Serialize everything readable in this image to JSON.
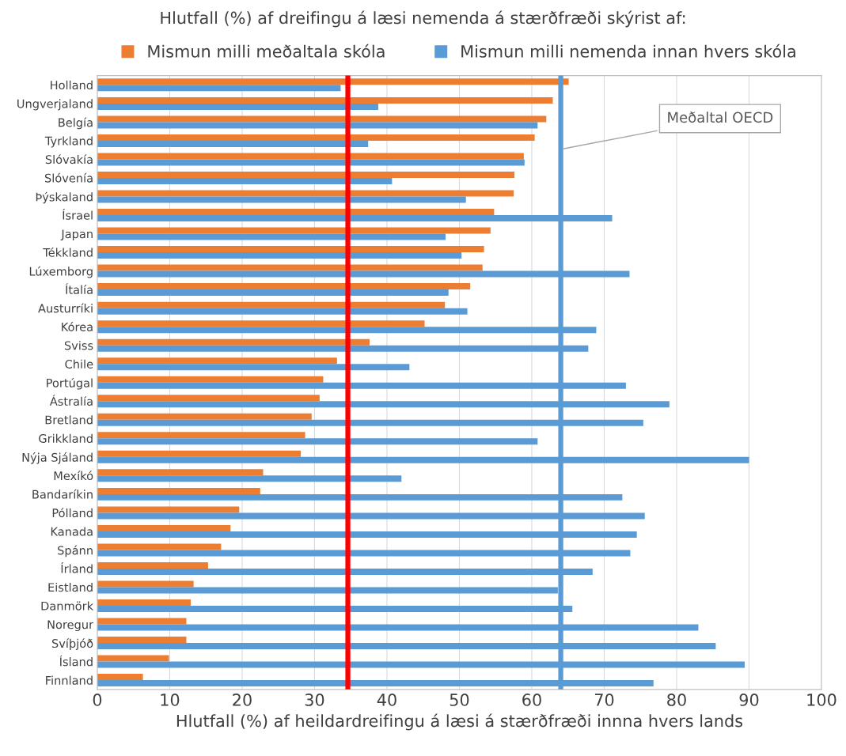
{
  "chart_data": {
    "type": "bar",
    "orientation": "horizontal",
    "title": "Hlutfall (%) af dreifingu á læsi nemenda á stærðfræði skýrist af:",
    "xlabel": "Hlutfall (%) af heildardreifingu á læsi á stærðfræði innna hvers lands",
    "categories": [
      "Holland",
      "Ungverjaland",
      "Belgía",
      "Tyrkland",
      "Slóvakía",
      "Slóvenía",
      "Þýskaland",
      "Ísrael",
      "Japan",
      "Tékkland",
      "Lúxemborg",
      "Ítalía",
      "Austurríki",
      "Kórea",
      "Sviss",
      "Chile",
      "Portúgal",
      "Ástralía",
      "Bretland",
      "Grikkland",
      "Nýja Sjáland",
      "Mexíkó",
      "Bandaríkin",
      "Pólland",
      "Kanada",
      "Spánn",
      "Írland",
      "Eistland",
      "Danmörk",
      "Noregur",
      "Svíþjóð",
      "Ísland",
      "Finnland"
    ],
    "series": [
      {
        "name": "Mismun milli meðaltala skóla",
        "color": "#ed7d31",
        "values": [
          65.1,
          62.9,
          62.0,
          60.4,
          58.9,
          57.6,
          57.5,
          54.8,
          54.3,
          53.4,
          53.2,
          51.5,
          48.0,
          45.2,
          37.6,
          33.1,
          31.2,
          30.7,
          29.6,
          28.7,
          28.1,
          22.9,
          22.5,
          19.6,
          18.4,
          17.1,
          15.3,
          13.3,
          12.9,
          12.3,
          12.3,
          9.9,
          6.3
        ]
      },
      {
        "name": "Mismun milli nemenda innan hvers skóla",
        "color": "#5b9bd5",
        "values": [
          33.6,
          38.8,
          60.8,
          37.4,
          59.0,
          40.7,
          50.9,
          71.1,
          48.1,
          50.3,
          73.5,
          48.5,
          51.1,
          68.9,
          67.8,
          43.1,
          73.0,
          79.0,
          75.4,
          60.8,
          90.0,
          42.0,
          72.5,
          75.6,
          74.5,
          73.6,
          68.4,
          63.6,
          65.6,
          83.0,
          85.4,
          89.4,
          76.8
        ]
      }
    ],
    "xlim": [
      0,
      100
    ],
    "xticks": [
      0,
      10,
      20,
      30,
      40,
      50,
      60,
      70,
      80,
      90,
      100
    ],
    "ref_lines": [
      {
        "axis": "x",
        "value": 34.6,
        "color": "#ff0000"
      },
      {
        "axis": "x",
        "value": 64.0,
        "color": "#5b9bd5",
        "label": "Meðaltal OECD"
      }
    ],
    "grid": "x",
    "legend": "top"
  }
}
